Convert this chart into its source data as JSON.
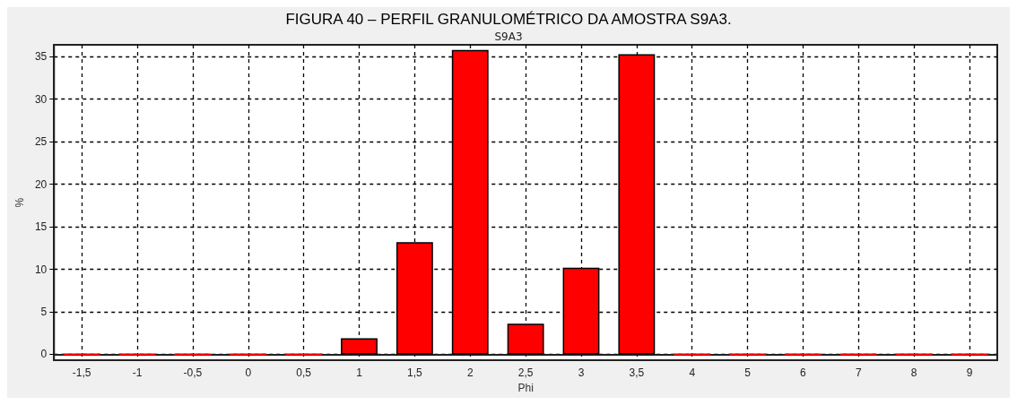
{
  "chart_data": {
    "type": "bar",
    "title": "FIGURA 40 – PERFIL GRANULOMÉTRICO DA AMOSTRA S9A3.",
    "subtitle": "S9A3",
    "xlabel": "Phi",
    "ylabel": "%",
    "categories": [
      "-1,5",
      "-1",
      "-0,5",
      "0",
      "0,5",
      "1",
      "1,5",
      "2",
      "2,5",
      "3",
      "3,5",
      "4",
      "5",
      "6",
      "7",
      "8",
      "9"
    ],
    "values": [
      0,
      0,
      0,
      0,
      0,
      1.9,
      13.2,
      35.8,
      3.6,
      10.2,
      35.3,
      0,
      0,
      0,
      0,
      0,
      0
    ],
    "color": "#ff0000",
    "ylim": [
      -0.7,
      36.4
    ],
    "yticks": [
      0,
      5,
      10,
      15,
      20,
      25,
      30,
      35
    ],
    "grid": true
  }
}
